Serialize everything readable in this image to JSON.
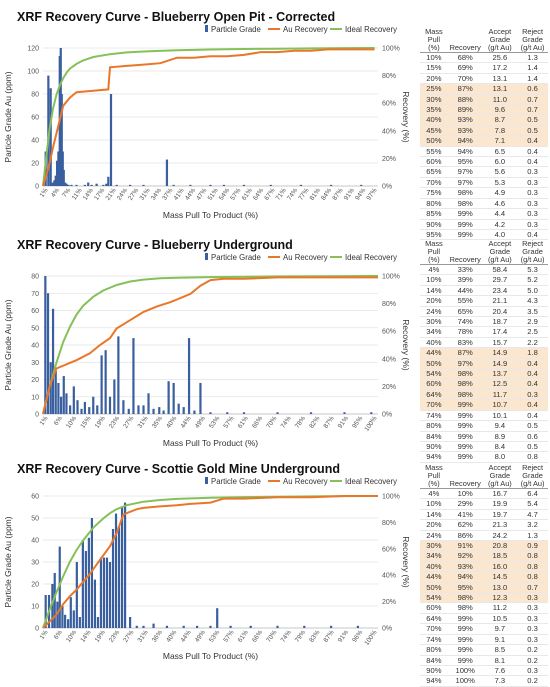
{
  "colors": {
    "grade": "#3a5f9e",
    "au": "#e8772a",
    "ideal": "#86c059",
    "highlight": "#fbe6cf"
  },
  "table_headers": [
    [
      "Mass",
      "Pull",
      "(%)"
    ],
    [
      "",
      "",
      "Recovery"
    ],
    [
      "Accept",
      "Grade",
      "(g/t Au)"
    ],
    [
      "Reject",
      "Grade",
      "(g/t Au)"
    ]
  ],
  "header_units": [
    "(%)",
    "(g/t Au)",
    "(g/t Au)"
  ],
  "sections": [
    {
      "title": "XRF Recovery Curve - Blueberry Open Pit - Corrected",
      "table": {
        "highlight": [
          3,
          4,
          5,
          6,
          7,
          8
        ],
        "rows": [
          [
            "10%",
            "68%",
            "25.6",
            "1.3"
          ],
          [
            "15%",
            "69%",
            "17.2",
            "1.4"
          ],
          [
            "20%",
            "70%",
            "13.1",
            "1.4"
          ],
          [
            "25%",
            "87%",
            "13.1",
            "0.6"
          ],
          [
            "30%",
            "88%",
            "11.0",
            "0.7"
          ],
          [
            "35%",
            "89%",
            "9.6",
            "0.7"
          ],
          [
            "40%",
            "93%",
            "8.7",
            "0.5"
          ],
          [
            "45%",
            "93%",
            "7.8",
            "0.5"
          ],
          [
            "50%",
            "94%",
            "7.1",
            "0.4"
          ],
          [
            "55%",
            "94%",
            "6.5",
            "0.4"
          ],
          [
            "60%",
            "95%",
            "6.0",
            "0.4"
          ],
          [
            "65%",
            "97%",
            "5.6",
            "0.3"
          ],
          [
            "70%",
            "97%",
            "5.3",
            "0.3"
          ],
          [
            "75%",
            "98%",
            "4.9",
            "0.3"
          ],
          [
            "80%",
            "98%",
            "4.6",
            "0.3"
          ],
          [
            "85%",
            "99%",
            "4.4",
            "0.3"
          ],
          [
            "90%",
            "99%",
            "4.2",
            "0.3"
          ],
          [
            "95%",
            "99%",
            "4.0",
            "0.4"
          ]
        ]
      }
    },
    {
      "title": "XRF Recovery Curve - Blueberry Underground",
      "table": {
        "highlight": [
          8,
          9,
          10,
          11,
          12,
          13
        ],
        "rows": [
          [
            "4%",
            "33%",
            "58.4",
            "5.3"
          ],
          [
            "10%",
            "39%",
            "29.7",
            "5.2"
          ],
          [
            "14%",
            "44%",
            "23.4",
            "5.0"
          ],
          [
            "20%",
            "55%",
            "21.1",
            "4.3"
          ],
          [
            "24%",
            "65%",
            "20.4",
            "3.5"
          ],
          [
            "30%",
            "74%",
            "18.7",
            "2.9"
          ],
          [
            "34%",
            "78%",
            "17.4",
            "2.5"
          ],
          [
            "40%",
            "83%",
            "15.7",
            "2.2"
          ],
          [
            "44%",
            "87%",
            "14.9",
            "1.8"
          ],
          [
            "50%",
            "97%",
            "14.9",
            "0.4"
          ],
          [
            "54%",
            "98%",
            "13.7",
            "0.4"
          ],
          [
            "60%",
            "98%",
            "12.5",
            "0.4"
          ],
          [
            "64%",
            "98%",
            "11.7",
            "0.3"
          ],
          [
            "70%",
            "99%",
            "10.7",
            "0.4"
          ],
          [
            "74%",
            "99%",
            "10.1",
            "0.4"
          ],
          [
            "80%",
            "99%",
            "9.4",
            "0.5"
          ],
          [
            "84%",
            "99%",
            "8.9",
            "0.6"
          ],
          [
            "90%",
            "99%",
            "8.4",
            "0.5"
          ],
          [
            "94%",
            "99%",
            "8.0",
            "0.8"
          ]
        ]
      }
    },
    {
      "title": "XRF Recovery Curve - Scottie Gold Mine Underground",
      "table": {
        "highlight": [
          5,
          6,
          7,
          8,
          9,
          10
        ],
        "rows": [
          [
            "4%",
            "10%",
            "16.7",
            "6.4"
          ],
          [
            "10%",
            "29%",
            "19.9",
            "5.4"
          ],
          [
            "14%",
            "41%",
            "19.7",
            "4.7"
          ],
          [
            "20%",
            "62%",
            "21.3",
            "3.2"
          ],
          [
            "24%",
            "86%",
            "24.2",
            "1.3"
          ],
          [
            "30%",
            "91%",
            "20.8",
            "0.9"
          ],
          [
            "34%",
            "92%",
            "18.5",
            "0.8"
          ],
          [
            "40%",
            "93%",
            "16.0",
            "0.8"
          ],
          [
            "44%",
            "94%",
            "14.5",
            "0.8"
          ],
          [
            "50%",
            "95%",
            "13.0",
            "0.7"
          ],
          [
            "54%",
            "98%",
            "12.3",
            "0.3"
          ],
          [
            "60%",
            "98%",
            "11.2",
            "0.3"
          ],
          [
            "64%",
            "99%",
            "10.5",
            "0.3"
          ],
          [
            "70%",
            "99%",
            "9.7",
            "0.3"
          ],
          [
            "74%",
            "99%",
            "9.1",
            "0.3"
          ],
          [
            "80%",
            "99%",
            "8.5",
            "0.2"
          ],
          [
            "84%",
            "99%",
            "8.1",
            "0.2"
          ],
          [
            "90%",
            "100%",
            "7.6",
            "0.3"
          ],
          [
            "94%",
            "100%",
            "7.3",
            "0.2"
          ]
        ]
      }
    }
  ],
  "chart_data": [
    {
      "type": "bar+line",
      "title": "XRF Recovery Curve - Blueberry Open Pit - Corrected",
      "xlabel": "Mass Pull To Product (%)",
      "ylabel": "Particle Grade Au (ppm)",
      "y2label": "Recovery (%)",
      "ylim": [
        0,
        120
      ],
      "yticks": [
        0,
        20,
        40,
        60,
        80,
        100,
        120
      ],
      "y2ticks": [
        "0%",
        "20%",
        "40%",
        "60%",
        "80%",
        "100%"
      ],
      "xticks": [
        "1%",
        "4%",
        "7%",
        "11%",
        "14%",
        "17%",
        "21%",
        "24%",
        "27%",
        "31%",
        "34%",
        "37%",
        "41%",
        "44%",
        "47%",
        "51%",
        "54%",
        "57%",
        "61%",
        "64%",
        "67%",
        "71%",
        "74%",
        "77%",
        "81%",
        "84%",
        "87%",
        "91%",
        "94%",
        "97%"
      ],
      "legend": [
        "Particle Grade",
        "Au Recovery",
        "Ideal Recovery"
      ],
      "legend_position": "top",
      "bars": {
        "name": "Particle Grade",
        "x": [
          0.8,
          1.6,
          2.3,
          2.9,
          3.4,
          3.8,
          4.2,
          4.6,
          5.0,
          5.3,
          5.6,
          5.9,
          6.2,
          6.6,
          7.0,
          7.6,
          8.5,
          10.0,
          12.5,
          13.5,
          14.5,
          16.0,
          18.0,
          18.9,
          19.5,
          20.3,
          22.0,
          26.0,
          30.0,
          37.0,
          39.0,
          44.0,
          50.0,
          54.0,
          60.0,
          68.0,
          77.0,
          86.0,
          95.0
        ],
        "y": [
          30,
          96,
          85,
          3,
          5,
          9,
          22,
          30,
          113,
          121,
          80,
          30,
          14,
          3,
          2,
          1,
          1,
          1,
          1,
          3,
          1,
          2,
          1,
          2,
          8,
          80,
          1,
          1,
          1,
          23,
          1,
          1,
          1,
          1,
          1,
          1,
          1,
          1,
          1
        ]
      },
      "au_recovery": {
        "name": "Au Recovery",
        "x": [
          0,
          1,
          2,
          3,
          4,
          5,
          6,
          8,
          10,
          15,
          19.5,
          20,
          25,
          30,
          35,
          40,
          45,
          50,
          55,
          60,
          65,
          70,
          75,
          80,
          85,
          90,
          95,
          99
        ],
        "y": [
          0,
          8,
          17,
          28,
          38,
          48,
          58,
          64,
          68,
          69,
          70,
          86,
          87,
          88,
          89,
          93,
          93,
          94,
          94,
          95,
          97,
          97,
          98,
          98,
          99,
          99,
          99,
          99
        ]
      },
      "ideal_recovery": {
        "name": "Ideal Recovery",
        "x": [
          0,
          1,
          2,
          3,
          4,
          5,
          6,
          7,
          8,
          10,
          12,
          15,
          20,
          25,
          30,
          40,
          50,
          60,
          70,
          80,
          90,
          99
        ],
        "y": [
          0,
          22,
          42,
          56,
          66,
          73,
          78,
          82,
          85,
          88.5,
          91,
          93.5,
          95.5,
          96.8,
          97.5,
          98.4,
          98.9,
          99.3,
          99.5,
          99.7,
          99.9,
          100
        ]
      }
    },
    {
      "type": "bar+line",
      "title": "XRF Recovery Curve - Blueberry Underground",
      "xlabel": "Mass Pull To Product (%)",
      "ylabel": "Particle Grade Au (ppm)",
      "y2label": "Recovery (%)",
      "ylim": [
        0,
        80
      ],
      "yticks": [
        0,
        10,
        20,
        30,
        40,
        50,
        60,
        70,
        80
      ],
      "y2ticks": [
        "0%",
        "20%",
        "40%",
        "60%",
        "80%",
        "100%"
      ],
      "xticks": [
        "1%",
        "6%",
        "10%",
        "15%",
        "19%",
        "23%",
        "27%",
        "31%",
        "35%",
        "40%",
        "44%",
        "49%",
        "53%",
        "57%",
        "61%",
        "66%",
        "70%",
        "74%",
        "78%",
        "82%",
        "87%",
        "91%",
        "95%",
        "100%"
      ],
      "legend": [
        "Particle Grade",
        "Au Recovery",
        "Ideal Recovery"
      ],
      "legend_position": "top",
      "bars": {
        "name": "Particle Grade",
        "x": [
          0.7,
          1.5,
          2.3,
          3.0,
          3.8,
          4.6,
          5.4,
          6.2,
          7.0,
          8.1,
          9.2,
          10.3,
          11.5,
          12.5,
          13.8,
          15.0,
          16.2,
          17.5,
          18.7,
          20.0,
          21.3,
          22.5,
          24.0,
          25.6,
          27.0,
          28.5,
          30.0,
          31.5,
          33.0,
          34.7,
          36.0,
          37.5,
          39.0,
          40.5,
          42.0,
          43.6,
          45.2,
          47.0,
          50.0,
          55.0,
          60.0,
          70.0,
          80.0,
          90.0,
          98.0
        ],
        "y": [
          82,
          70,
          30,
          61,
          25,
          18,
          10,
          22,
          12,
          5,
          16,
          8,
          3,
          7,
          4,
          10,
          5,
          34,
          37,
          10,
          20,
          45,
          8,
          3,
          44,
          5,
          5,
          12,
          3,
          4,
          2,
          19,
          18,
          6,
          4,
          44,
          2,
          18,
          1,
          1,
          1,
          1,
          1,
          1,
          1
        ]
      },
      "au_recovery": {
        "name": "Au Recovery",
        "x": [
          0,
          2,
          4,
          7,
          10,
          14,
          17,
          20,
          22,
          24,
          26,
          30,
          34,
          38,
          40,
          42,
          44,
          47,
          50,
          54,
          60,
          70,
          80,
          90,
          100
        ],
        "y": [
          0,
          20,
          33,
          36,
          39,
          44,
          50,
          55,
          62,
          65,
          68,
          74,
          78,
          81,
          83,
          85,
          87,
          93,
          97,
          98,
          98,
          99,
          99,
          99,
          99
        ]
      },
      "ideal_recovery": {
        "name": "Ideal Recovery",
        "x": [
          0,
          2,
          4,
          6,
          8,
          10,
          12,
          15,
          18,
          22,
          26,
          30,
          35,
          40,
          50,
          60,
          70,
          80,
          90,
          100
        ],
        "y": [
          0,
          20,
          37,
          52,
          63,
          72,
          78.5,
          85,
          89.5,
          93.5,
          96,
          97.4,
          98.3,
          98.8,
          99.2,
          99.5,
          99.7,
          99.8,
          99.9,
          100
        ]
      }
    },
    {
      "type": "bar+line",
      "title": "XRF Recovery Curve - Scottie Gold Mine Underground",
      "xlabel": "Mass Pull To Product (%)",
      "ylabel": "Particle Grade Au (ppm)",
      "y2label": "Recovery (%)",
      "ylim": [
        0,
        60
      ],
      "yticks": [
        0,
        10,
        20,
        30,
        40,
        50,
        60
      ],
      "y2ticks": [
        "0%",
        "20%",
        "40%",
        "60%",
        "80%",
        "100%"
      ],
      "xticks": [
        "1%",
        "6%",
        "10%",
        "14%",
        "19%",
        "23%",
        "27%",
        "31%",
        "36%",
        "40%",
        "44%",
        "49%",
        "53%",
        "57%",
        "61%",
        "66%",
        "70%",
        "74%",
        "79%",
        "83%",
        "87%",
        "91%",
        "96%",
        "100%"
      ],
      "legend": [
        "Particle Grade",
        "Au Recovery",
        "Ideal Recovery"
      ],
      "legend_position": "top",
      "bars": {
        "name": "Particle Grade",
        "x": [
          0.8,
          1.8,
          2.8,
          3.5,
          4.3,
          5.0,
          5.8,
          6.6,
          7.5,
          8.3,
          9.2,
          10.1,
          11.0,
          11.9,
          12.8,
          13.7,
          14.6,
          15.5,
          16.4,
          17.3,
          18.2,
          19.1,
          20.0,
          20.9,
          21.8,
          22.7,
          23.6,
          24.5,
          26.0,
          28.0,
          30.0,
          33.0,
          37.0,
          42.0,
          46.0,
          50.0,
          52.0,
          56.0,
          62.0,
          70.0,
          78.0,
          86.0,
          94.0
        ],
        "y": [
          15,
          15,
          20,
          25,
          12,
          37,
          10,
          6,
          4,
          14,
          8,
          30,
          5,
          40,
          35,
          41,
          50,
          22,
          5,
          32,
          32,
          32,
          30,
          45,
          52,
          46,
          55,
          57,
          5,
          1,
          1,
          2,
          1,
          1,
          1,
          1,
          9,
          1,
          1,
          1,
          1,
          1,
          1
        ]
      },
      "au_recovery": {
        "name": "Au Recovery",
        "x": [
          0,
          2,
          4,
          6,
          8,
          10,
          12,
          14,
          16,
          18,
          20,
          22,
          24,
          26,
          28,
          30,
          34,
          40,
          44,
          50,
          54,
          60,
          70,
          80,
          90,
          100
        ],
        "y": [
          0,
          5,
          10,
          18,
          24,
          29,
          35,
          41,
          48,
          55,
          62,
          72,
          86,
          88,
          90,
          91,
          92,
          93,
          94,
          95,
          98,
          98,
          99,
          99,
          100,
          100
        ]
      },
      "ideal_recovery": {
        "name": "Ideal Recovery",
        "x": [
          0,
          2,
          4,
          6,
          8,
          10,
          12,
          15,
          18,
          20,
          22,
          25,
          30,
          35,
          40,
          50,
          60,
          70,
          80,
          90,
          100
        ],
        "y": [
          0,
          14,
          27,
          39,
          50,
          59,
          66.5,
          76,
          83,
          87,
          90,
          93,
          95.7,
          97,
          97.8,
          98.7,
          99.2,
          99.5,
          99.7,
          99.9,
          100
        ]
      }
    }
  ]
}
